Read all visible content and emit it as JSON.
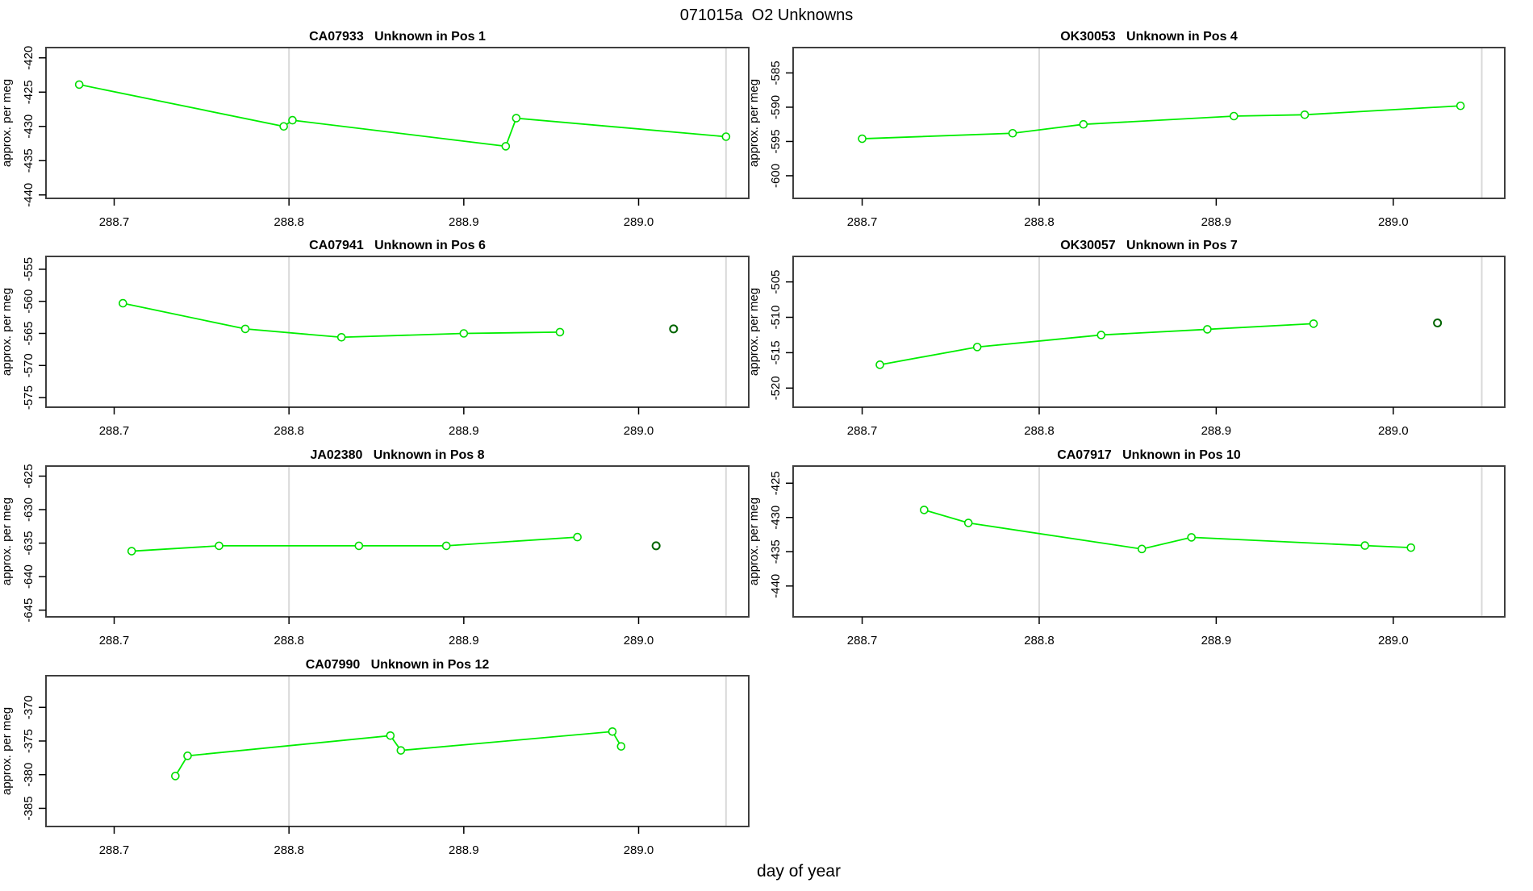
{
  "title": "071015a  O2 Unknowns",
  "xlabel": "day of year",
  "colors": {
    "series_line": "#00ee00",
    "marker_stroke": "#00dd00",
    "isolated_point": "#006400",
    "reference_line": "#d9d9d9",
    "panel_border": "#3f3f3f",
    "tick": "#000000",
    "text": "#000000",
    "background": "#ffffff"
  },
  "chart_data": [
    {
      "type": "line",
      "code": "CA07933",
      "desc": "Unknown in Pos 1",
      "ylabel": "approx. per meg",
      "row": 0,
      "col": 0,
      "xlim": [
        288.661,
        289.063
      ],
      "ylim": [
        -440.5,
        -418.5
      ],
      "xtick_values": [
        288.7,
        288.8,
        288.9,
        289.0
      ],
      "xtick_labels": [
        "288.7",
        "288.8",
        "288.9",
        "289.0"
      ],
      "ytick_values": [
        -440,
        -435,
        -430,
        -425,
        -420
      ],
      "ytick_labels": [
        "-440",
        "-435",
        "-430",
        "-425",
        "-420"
      ],
      "reference_lines": [
        288.8,
        289.05
      ],
      "x": [
        288.68,
        288.797,
        288.802,
        288.924,
        288.93,
        289.05
      ],
      "y": [
        -423.9,
        -430.0,
        -429.1,
        -432.9,
        -428.8,
        -431.5
      ],
      "isolated": null
    },
    {
      "type": "line",
      "code": "OK30053",
      "desc": "Unknown in Pos 4",
      "ylabel": "approx. per meg",
      "row": 0,
      "col": 1,
      "xlim": [
        288.661,
        289.063
      ],
      "ylim": [
        -603.3,
        -581.3
      ],
      "xtick_values": [
        288.7,
        288.8,
        288.9,
        289.0
      ],
      "xtick_labels": [
        "288.7",
        "288.8",
        "288.9",
        "289.0"
      ],
      "ytick_values": [
        -600,
        -595,
        -590,
        -585
      ],
      "ytick_labels": [
        "-600",
        "-595",
        "-590",
        "-585"
      ],
      "reference_lines": [
        288.8,
        289.05
      ],
      "x": [
        288.7,
        288.785,
        288.825,
        288.91,
        288.95,
        289.038
      ],
      "y": [
        -594.6,
        -593.8,
        -592.5,
        -591.3,
        -591.1,
        -589.8
      ],
      "isolated": null
    },
    {
      "type": "line",
      "code": "CA07941",
      "desc": "Unknown in Pos 6",
      "ylabel": "approx. per meg",
      "row": 1,
      "col": 0,
      "xlim": [
        288.661,
        289.063
      ],
      "ylim": [
        -576.5,
        -553.0
      ],
      "xtick_values": [
        288.7,
        288.8,
        288.9,
        289.0
      ],
      "xtick_labels": [
        "288.7",
        "288.8",
        "288.9",
        "289.0"
      ],
      "ytick_values": [
        -575,
        -570,
        -565,
        -560,
        -555
      ],
      "ytick_labels": [
        "-575",
        "-570",
        "-565",
        "-560",
        "-555"
      ],
      "reference_lines": [
        288.8,
        289.05
      ],
      "x": [
        288.705,
        288.775,
        288.83,
        288.9,
        288.955
      ],
      "y": [
        -560.3,
        -564.3,
        -565.6,
        -565.0,
        -564.8
      ],
      "isolated": {
        "x": 289.02,
        "y": -564.3
      }
    },
    {
      "type": "line",
      "code": "OK30057",
      "desc": "Unknown in Pos 7",
      "ylabel": "approx. per meg",
      "row": 1,
      "col": 1,
      "xlim": [
        288.661,
        289.063
      ],
      "ylim": [
        -522.7,
        -501.4
      ],
      "xtick_values": [
        288.7,
        288.8,
        288.9,
        289.0
      ],
      "xtick_labels": [
        "288.7",
        "288.8",
        "288.9",
        "289.0"
      ],
      "ytick_values": [
        -520,
        -515,
        -510,
        -505
      ],
      "ytick_labels": [
        "-520",
        "-515",
        "-510",
        "-505"
      ],
      "reference_lines": [
        288.8,
        289.05
      ],
      "x": [
        288.71,
        288.765,
        288.835,
        288.895,
        288.955
      ],
      "y": [
        -516.7,
        -514.2,
        -512.5,
        -511.7,
        -510.9
      ],
      "isolated": {
        "x": 289.025,
        "y": -510.8
      }
    },
    {
      "type": "line",
      "code": "JA02380",
      "desc": "Unknown in Pos 8",
      "ylabel": "approx. per meg",
      "row": 2,
      "col": 0,
      "xlim": [
        288.661,
        289.063
      ],
      "ylim": [
        -646.0,
        -623.5
      ],
      "xtick_values": [
        288.7,
        288.8,
        288.9,
        289.0
      ],
      "xtick_labels": [
        "288.7",
        "288.8",
        "288.9",
        "289.0"
      ],
      "ytick_values": [
        -645,
        -640,
        -635,
        -630,
        -625
      ],
      "ytick_labels": [
        "-645",
        "-640",
        "-635",
        "-630",
        "-625"
      ],
      "reference_lines": [
        288.8,
        289.05
      ],
      "x": [
        288.71,
        288.76,
        288.84,
        288.89,
        288.965
      ],
      "y": [
        -636.2,
        -635.4,
        -635.4,
        -635.4,
        -634.1
      ],
      "isolated": {
        "x": 289.01,
        "y": -635.4
      }
    },
    {
      "type": "line",
      "code": "CA07917",
      "desc": "Unknown in Pos 10",
      "ylabel": "approx. per meg",
      "row": 2,
      "col": 1,
      "xlim": [
        288.661,
        289.063
      ],
      "ylim": [
        -444.5,
        -422.5
      ],
      "xtick_values": [
        288.7,
        288.8,
        288.9,
        289.0
      ],
      "xtick_labels": [
        "288.7",
        "288.8",
        "288.9",
        "289.0"
      ],
      "ytick_values": [
        -440,
        -435,
        -430,
        -425
      ],
      "ytick_labels": [
        "-440",
        "-435",
        "-430",
        "-425"
      ],
      "reference_lines": [
        288.8,
        289.05
      ],
      "x": [
        288.735,
        288.76,
        288.858,
        288.886,
        288.984,
        289.01
      ],
      "y": [
        -428.9,
        -430.8,
        -434.6,
        -432.9,
        -434.1,
        -434.4
      ],
      "isolated": null
    },
    {
      "type": "line",
      "code": "CA07990",
      "desc": "Unknown in Pos 12",
      "ylabel": "approx. per meg",
      "row": 3,
      "col": 0,
      "xlim": [
        288.661,
        289.063
      ],
      "ylim": [
        -387.7,
        -365.3
      ],
      "xtick_values": [
        288.7,
        288.8,
        288.9,
        289.0
      ],
      "xtick_labels": [
        "288.7",
        "288.8",
        "288.9",
        "289.0"
      ],
      "ytick_values": [
        -385,
        -380,
        -375,
        -370
      ],
      "ytick_labels": [
        "-385",
        "-380",
        "-375",
        "-370"
      ],
      "reference_lines": [
        288.8,
        289.05
      ],
      "x": [
        288.735,
        288.742,
        288.858,
        288.864,
        288.985,
        288.99
      ],
      "y": [
        -380.2,
        -377.2,
        -374.2,
        -376.4,
        -373.6,
        -375.8
      ],
      "isolated": null
    }
  ]
}
